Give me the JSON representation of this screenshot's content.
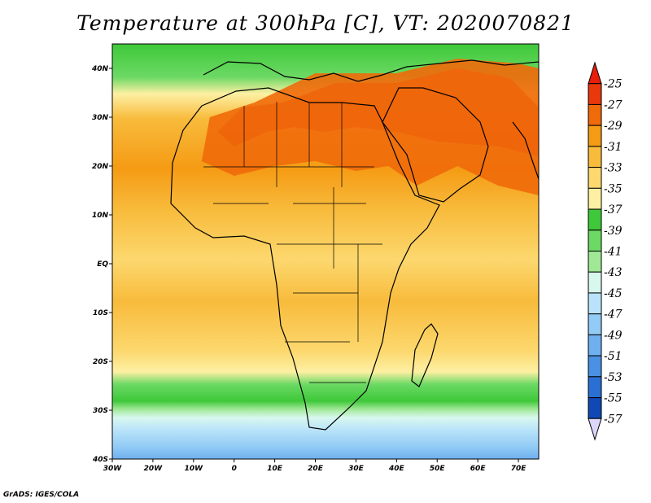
{
  "title": "Temperature at 300hPa [C], VT: 2020070821",
  "footer": "GrADS: IGES/COLA",
  "map": {
    "lon_range": [
      -30,
      75
    ],
    "lat_range": [
      -40,
      45
    ],
    "lon_ticks": [
      {
        "value": -30,
        "label": "30W"
      },
      {
        "value": -20,
        "label": "20W"
      },
      {
        "value": -10,
        "label": "10W"
      },
      {
        "value": 0,
        "label": "0"
      },
      {
        "value": 10,
        "label": "10E"
      },
      {
        "value": 20,
        "label": "20E"
      },
      {
        "value": 30,
        "label": "30E"
      },
      {
        "value": 40,
        "label": "40E"
      },
      {
        "value": 50,
        "label": "50E"
      },
      {
        "value": 60,
        "label": "60E"
      },
      {
        "value": 70,
        "label": "70E"
      }
    ],
    "lat_ticks": [
      {
        "value": 40,
        "label": "40N"
      },
      {
        "value": 30,
        "label": "30N"
      },
      {
        "value": 20,
        "label": "20N"
      },
      {
        "value": 10,
        "label": "10N"
      },
      {
        "value": 0,
        "label": "EQ"
      },
      {
        "value": -10,
        "label": "10S"
      },
      {
        "value": -20,
        "label": "20S"
      },
      {
        "value": -30,
        "label": "30S"
      },
      {
        "value": -40,
        "label": "40S"
      }
    ]
  },
  "colorbar": {
    "labels": [
      "-25",
      "-27",
      "-29",
      "-31",
      "-33",
      "-35",
      "-37",
      "-39",
      "-41",
      "-43",
      "-45",
      "-47",
      "-49",
      "-51",
      "-53",
      "-55",
      "-57"
    ],
    "colors": [
      "#e8380c",
      "#f06a0a",
      "#f59b14",
      "#f8bb3c",
      "#fcd86e",
      "#fdf0a3",
      "#3ec83a",
      "#6cd964",
      "#a0e896",
      "#d8f8ee",
      "#b9e3fa",
      "#92cbf5",
      "#6fb0f0",
      "#4a90e4",
      "#2a70d4",
      "#1048b4",
      "#0a1f80"
    ],
    "top_arrow_color": "#e81e0a",
    "bottom_arrow_color": "#dcd6fa"
  },
  "contours": [
    {
      "level": -25,
      "color": "#e8380c",
      "points": [
        [
          25,
          37
        ],
        [
          40,
          37
        ],
        [
          55,
          40
        ],
        [
          68,
          38
        ],
        [
          75,
          32
        ],
        [
          75,
          22
        ],
        [
          65,
          24
        ],
        [
          50,
          25
        ],
        [
          40,
          27
        ],
        [
          30,
          28
        ],
        [
          22,
          27
        ],
        [
          15,
          28
        ],
        [
          8,
          27
        ],
        [
          0,
          24
        ],
        [
          -4,
          27
        ],
        [
          2,
          32
        ],
        [
          12,
          33
        ],
        [
          25,
          37
        ]
      ]
    },
    {
      "level": -27,
      "color": "#f06a0a",
      "points": [
        [
          20,
          39
        ],
        [
          40,
          39
        ],
        [
          55,
          42
        ],
        [
          70,
          41
        ],
        [
          75,
          40
        ],
        [
          75,
          14
        ],
        [
          65,
          16
        ],
        [
          55,
          20
        ],
        [
          45,
          16
        ],
        [
          38,
          20
        ],
        [
          30,
          19
        ],
        [
          20,
          21
        ],
        [
          10,
          20
        ],
        [
          0,
          18
        ],
        [
          -8,
          21
        ],
        [
          -6,
          30
        ],
        [
          5,
          33
        ],
        [
          20,
          39
        ]
      ]
    }
  ]
}
